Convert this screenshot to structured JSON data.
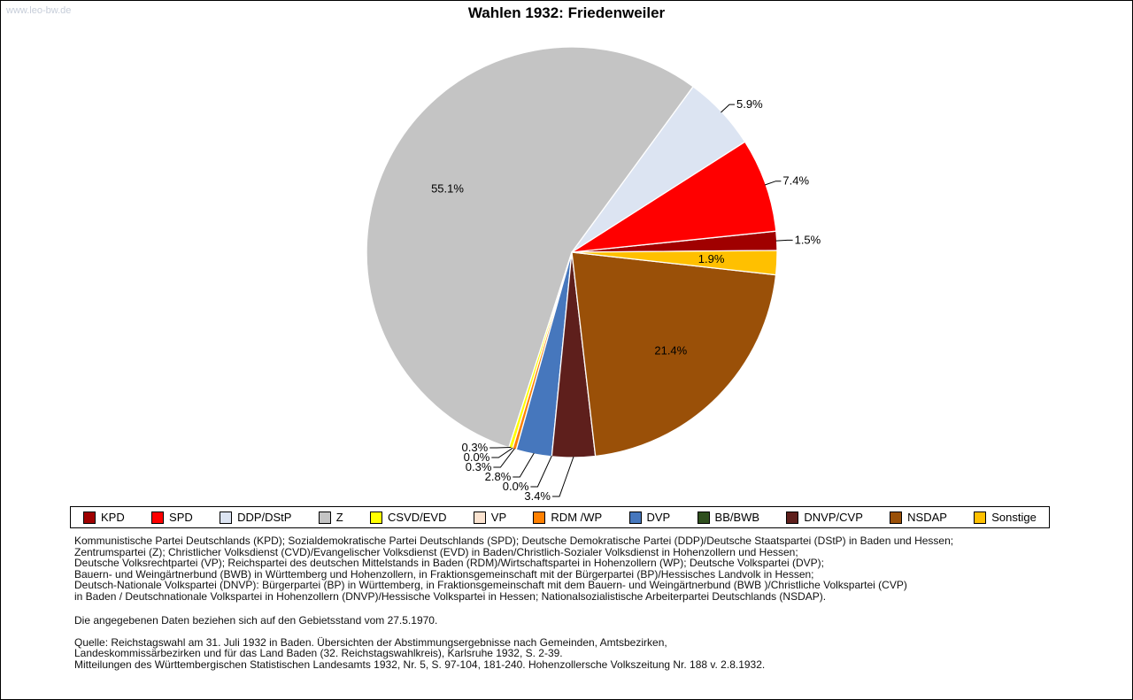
{
  "watermark": "www.leo-bw.de",
  "title": "Wahlen 1932: Friedenweiler",
  "chart_data": {
    "type": "pie",
    "title": "Wahlen 1932: Friedenweiler",
    "unit": "%",
    "legend_position": "bottom",
    "start_angle_deg_clockwise_from_top": 89.5,
    "direction": "counterclockwise",
    "slices": [
      {
        "label": "KPD",
        "value": 1.5,
        "display": "1.5%",
        "color": "#a00000",
        "label_placement": "outside"
      },
      {
        "label": "SPD",
        "value": 7.4,
        "display": "7.4%",
        "color": "#ff0000",
        "label_placement": "outside"
      },
      {
        "label": "DDP/DStP",
        "value": 5.9,
        "display": "5.9%",
        "color": "#dce4f2",
        "label_placement": "outside"
      },
      {
        "label": "Z",
        "value": 55.1,
        "display": "55.1%",
        "color": "#c4c4c4",
        "label_placement": "inside"
      },
      {
        "label": "CSVD/EVD",
        "value": 0.3,
        "display": "0.3%",
        "color": "#ffff00",
        "label_placement": "outside"
      },
      {
        "label": "VP",
        "value": 0.0,
        "display": "0.0%",
        "color": "#fbe3d0",
        "label_placement": "outside"
      },
      {
        "label": "RDM /WP",
        "value": 0.3,
        "display": "0.3%",
        "color": "#ff8000",
        "label_placement": "outside"
      },
      {
        "label": "DVP",
        "value": 2.8,
        "display": "2.8%",
        "color": "#4677bd",
        "label_placement": "outside"
      },
      {
        "label": "BB/BWB",
        "value": 0.0,
        "display": "0.0%",
        "color": "#2f4f1e",
        "label_placement": "outside"
      },
      {
        "label": "DNVP/CVP",
        "value": 3.4,
        "display": "3.4%",
        "color": "#5e1f1c",
        "label_placement": "outside"
      },
      {
        "label": "NSDAP",
        "value": 21.4,
        "display": "21.4%",
        "color": "#9a5008",
        "label_placement": "inside"
      },
      {
        "label": "Sonstige",
        "value": 1.9,
        "display": "1.9%",
        "color": "#ffc000",
        "label_placement": "inside"
      }
    ]
  },
  "notes": {
    "parties": "Kommunistische Partei Deutschlands (KPD); Sozialdemokratische Partei Deutschlands (SPD); Deutsche Demokratische Partei (DDP)/Deutsche Staatspartei (DStP) in Baden und Hessen;\nZentrumspartei (Z); Christlicher Volksdienst (CVD)/Evangelischer Volksdienst (EVD) in Baden/Christlich-Sozialer Volksdienst in Hohenzollern und Hessen;\nDeutsche Volksrechtpartei (VP); Reichspartei des deutschen Mittelstands in Baden (RDM)/Wirtschaftspartei in Hohenzollern (WP); Deutsche Volkspartei (DVP);\nBauern- und Weingärtnerbund (BWB) in Württemberg und Hohenzollern, in Fraktionsgemeinschaft mit der Bürgerpartei (BP)/Hessisches Landvolk in Hessen;\nDeutsch-Nationale Volkspartei (DNVP): Bürgerpartei (BP) in Württemberg, in Fraktionsgemeinschaft mit dem Bauern- und Weingärtnerbund (BWB )/Christliche Volkspartei (CVP)\nin Baden / Deutschnationale Volkspartei in Hohenzollern (DNVP)/Hessische Volkspartei in Hessen; Nationalsozialistische Arbeiterpartei Deutschlands (NSDAP).",
    "territory": "Die angegebenen Daten beziehen sich auf den Gebietsstand vom 27.5.1970.",
    "source": "Quelle: Reichstagswahl am 31. Juli 1932 in Baden. Übersichten der Abstimmungsergebnisse nach Gemeinden, Amtsbezirken,\nLandeskommissärbezirken und für das Land Baden (32. Reichstagswahlkreis), Karlsruhe 1932, S. 2-39.\nMitteilungen des Württembergischen Statistischen Landesamts 1932, Nr. 5, S. 97-104, 181-240. Hohenzollersche Volkszeitung Nr. 188 v. 2.8.1932."
  }
}
